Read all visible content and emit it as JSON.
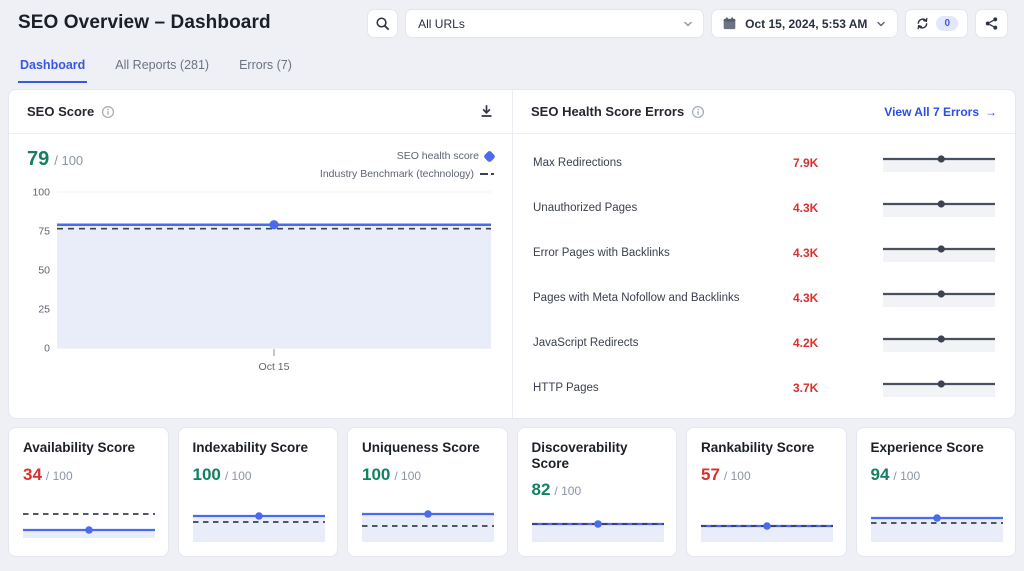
{
  "theme": {
    "accent": "#3a56e4",
    "chart_blue": "#4b6bee",
    "chart_fill": "#e9edfa",
    "benchmark_dash": "#3a4250",
    "green": "#15805f",
    "red": "#d8302f",
    "spark_line": "#49505f",
    "spark_fill": "#f2f3f6"
  },
  "header": {
    "title": "SEO Overview – Dashboard",
    "url_filter_value": "All URLs",
    "date_value": "Oct 15, 2024, 5:53 AM",
    "refresh_count": "0"
  },
  "tabs": [
    {
      "label": "Dashboard",
      "active": true
    },
    {
      "label": "All Reports (281)",
      "active": false
    },
    {
      "label": "Errors (7)",
      "active": false
    }
  ],
  "seo_score": {
    "title": "SEO Score",
    "score": "79",
    "max": "/ 100",
    "legend": [
      {
        "label": "SEO health score",
        "marker": "blue-diamond"
      },
      {
        "label": "Industry Benchmark (technology)",
        "marker": "dashed-line"
      }
    ],
    "chart": {
      "y_ticks": [
        100,
        75,
        50,
        25,
        0
      ],
      "y_max": 100,
      "score_value": 79,
      "benchmark_value": 76.5,
      "x_label": "Oct 15",
      "dot_x": 0.5
    }
  },
  "errors_panel": {
    "title": "SEO Health Score Errors",
    "view_all": "View All 7 Errors",
    "view_all_arrow": "→",
    "spark_dot_x": 0.52,
    "items": [
      {
        "label": "Max Redirections",
        "value": "7.9K"
      },
      {
        "label": "Unauthorized Pages",
        "value": "4.3K"
      },
      {
        "label": "Error Pages with Backlinks",
        "value": "4.3K"
      },
      {
        "label": "Pages with Meta Nofollow and Backlinks",
        "value": "4.3K"
      },
      {
        "label": "JavaScript Redirects",
        "value": "4.2K"
      },
      {
        "label": "HTTP Pages",
        "value": "3.7K"
      }
    ]
  },
  "score_cards": [
    {
      "title": "Availability Score",
      "score": "34",
      "max": "/ 100",
      "color": "red",
      "spark": {
        "blue_y": 30,
        "dash_y": 14,
        "fill_to": 38
      }
    },
    {
      "title": "Indexability Score",
      "score": "100",
      "max": "/ 100",
      "color": "green",
      "spark": {
        "blue_y": 16,
        "dash_y": 22,
        "fill_to": 42
      }
    },
    {
      "title": "Uniqueness Score",
      "score": "100",
      "max": "/ 100",
      "color": "green",
      "spark": {
        "blue_y": 14,
        "dash_y": 26,
        "fill_to": 42
      }
    },
    {
      "title": "Discoverability Score",
      "score": "82",
      "max": "/ 100",
      "color": "green",
      "spark": {
        "blue_y": 24,
        "dash_y": 24,
        "fill_to": 42
      }
    },
    {
      "title": "Rankability Score",
      "score": "57",
      "max": "/ 100",
      "color": "red",
      "spark": {
        "blue_y": 26,
        "dash_y": 26,
        "fill_to": 42
      }
    },
    {
      "title": "Experience Score",
      "score": "94",
      "max": "/ 100",
      "color": "green",
      "spark": {
        "blue_y": 18,
        "dash_y": 23,
        "fill_to": 42
      }
    }
  ],
  "chart_data": {
    "type": "line",
    "title": "SEO Score",
    "x": [
      "Oct 15"
    ],
    "series": [
      {
        "name": "SEO health score",
        "values": [
          79
        ]
      },
      {
        "name": "Industry Benchmark (technology)",
        "values": [
          76.5
        ]
      }
    ],
    "ylim": [
      0,
      100
    ],
    "y_ticks": [
      0,
      25,
      50,
      75,
      100
    ],
    "legend_position": "top-right",
    "notes": "flat blue line with area fill at 79; dashed benchmark at ~76.5; error-list mini sparklines are flat lines with centered dot"
  }
}
